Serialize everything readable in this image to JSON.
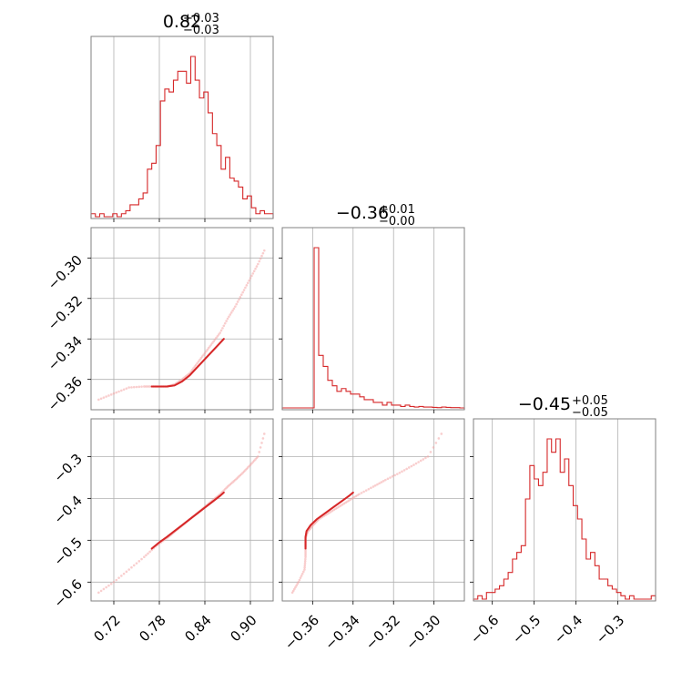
{
  "chart_data": {
    "type": "corner",
    "color": "#d62728",
    "parameters": [
      {
        "title_main": "0.82",
        "title_plus": "+0.03",
        "title_minus": "−0.03",
        "range": [
          0.69,
          0.93
        ],
        "ticks": [
          0.72,
          0.78,
          0.84,
          0.9
        ],
        "tick_labels": [
          "0.72",
          "0.78",
          "0.84",
          "0.90"
        ],
        "histogram": [
          1,
          0,
          1,
          0,
          0,
          1,
          0,
          1,
          2,
          4,
          4,
          6,
          8,
          16,
          18,
          24,
          39,
          43,
          42,
          46,
          49,
          49,
          45,
          54,
          46,
          40,
          42,
          35,
          28,
          24,
          16,
          20,
          13,
          12,
          10,
          6,
          7,
          3,
          1,
          2,
          1,
          1
        ]
      },
      {
        "title_main": "−0.36",
        "title_plus": "+0.01",
        "title_minus": "−0.00",
        "range": [
          -0.375,
          -0.285
        ],
        "ticks": [
          -0.36,
          -0.34,
          -0.32,
          -0.3
        ],
        "tick_labels": [
          "−0.36",
          "−0.34",
          "−0.32",
          "−0.30"
        ],
        "histogram": [
          0,
          0,
          0,
          0,
          0,
          0,
          0,
          58,
          19,
          15,
          10,
          8,
          6,
          7,
          6,
          5,
          5,
          4,
          3,
          3,
          2,
          2,
          1,
          2,
          1,
          1,
          0.5,
          1,
          0.5,
          0.3,
          0.5,
          0.3,
          0.3,
          0.2,
          0.1,
          0.3,
          0.2,
          0.1,
          0.1,
          0
        ]
      },
      {
        "title_main": "−0.45",
        "title_plus": "+0.05",
        "title_minus": "−0.05",
        "range": [
          -0.645,
          -0.21
        ],
        "ticks": [
          -0.6,
          -0.5,
          -0.4,
          -0.3
        ],
        "tick_labels": [
          "−0.6",
          "−0.5",
          "−0.4",
          "−0.3"
        ],
        "histogram": [
          0,
          1,
          0,
          2,
          2,
          3,
          4,
          6,
          8,
          12,
          14,
          16,
          30,
          40,
          36,
          34,
          38,
          48,
          44,
          48,
          38,
          42,
          34,
          28,
          24,
          18,
          12,
          14,
          10,
          6,
          6,
          4,
          3,
          2,
          1,
          0,
          1,
          0,
          0,
          0,
          0,
          1
        ]
      }
    ],
    "pair_samples": {
      "curve_param0": [
        0.7,
        0.72,
        0.74,
        0.76,
        0.775,
        0.79,
        0.8,
        0.81,
        0.82,
        0.83,
        0.84,
        0.85,
        0.86,
        0.87,
        0.88,
        0.89,
        0.9,
        0.91,
        0.92
      ],
      "curve_param1": [
        -0.37,
        -0.367,
        -0.364,
        -0.3635,
        -0.3635,
        -0.3635,
        -0.3625,
        -0.36,
        -0.357,
        -0.352,
        -0.347,
        -0.342,
        -0.337,
        -0.33,
        -0.324,
        -0.317,
        -0.31,
        -0.303,
        -0.295
      ],
      "curve_param2_from_param0": [
        -0.625,
        -0.6,
        -0.57,
        -0.54,
        -0.515,
        -0.495,
        -0.48,
        -0.465,
        -0.45,
        -0.435,
        -0.42,
        -0.405,
        -0.39,
        -0.372,
        -0.356,
        -0.339,
        -0.32,
        -0.3,
        -0.235
      ],
      "contour_param0": [
        0.77,
        0.78,
        0.79,
        0.8,
        0.81,
        0.82,
        0.83,
        0.84,
        0.85,
        0.86,
        0.865
      ],
      "contour_param1": [
        -0.3635,
        -0.3635,
        -0.3635,
        -0.363,
        -0.361,
        -0.358,
        -0.354,
        -0.35,
        -0.346,
        -0.342,
        -0.34
      ],
      "contour_param2": [
        -0.52,
        -0.505,
        -0.492,
        -0.478,
        -0.464,
        -0.45,
        -0.436,
        -0.422,
        -0.408,
        -0.394,
        -0.386
      ]
    }
  }
}
